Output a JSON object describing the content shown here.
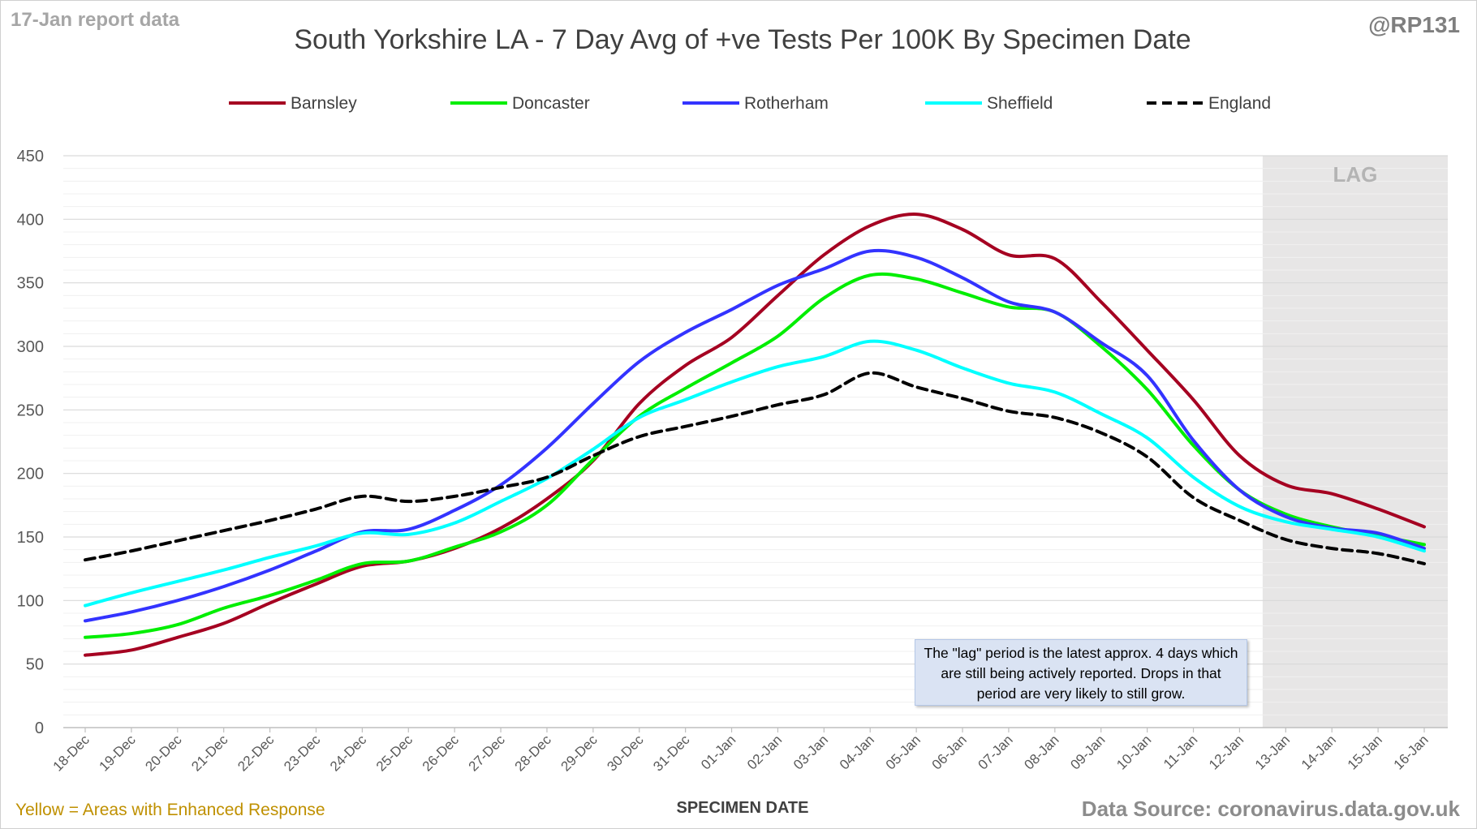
{
  "report_label": "17-Jan report data",
  "author": "@RP131",
  "footnote_left": "Yellow = Areas with Enhanced Response",
  "footnote_right": "Data Source: coronavirus.data.gov.uk",
  "annotation": "The \"lag\" period is the latest approx. 4 days which are still being actively reported. Drops in that period are very likely to still grow.",
  "colors": {
    "barnsley": "#a50021",
    "doncaster": "#00ee00",
    "rotherham": "#3333ff",
    "sheffield": "#00ffff",
    "england": "#000000",
    "lag_shade": "#e7e6e6"
  },
  "chart_data": {
    "type": "line",
    "title": "South Yorkshire LA - 7 Day Avg of +ve Tests Per 100K By Specimen Date",
    "xlabel": "SPECIMEN DATE",
    "ylabel": "",
    "ylim": [
      0,
      450
    ],
    "yticks": [
      0,
      50,
      100,
      150,
      200,
      250,
      300,
      350,
      400,
      450
    ],
    "grid": true,
    "legend_position": "top",
    "lag_label": "LAG",
    "lag_start": "13-Jan",
    "x": [
      "18-Dec",
      "19-Dec",
      "20-Dec",
      "21-Dec",
      "22-Dec",
      "23-Dec",
      "24-Dec",
      "25-Dec",
      "26-Dec",
      "27-Dec",
      "28-Dec",
      "29-Dec",
      "30-Dec",
      "31-Dec",
      "01-Jan",
      "02-Jan",
      "03-Jan",
      "04-Jan",
      "05-Jan",
      "06-Jan",
      "07-Jan",
      "08-Jan",
      "09-Jan",
      "10-Jan",
      "11-Jan",
      "12-Jan",
      "13-Jan",
      "14-Jan",
      "15-Jan",
      "16-Jan"
    ],
    "series": [
      {
        "name": "Barnsley",
        "color_key": "barnsley",
        "dashed": false,
        "values": [
          57,
          61,
          71,
          82,
          98,
          113,
          127,
          131,
          141,
          157,
          180,
          210,
          255,
          285,
          307,
          340,
          372,
          395,
          404,
          392,
          372,
          369,
          335,
          297,
          258,
          214,
          191,
          184,
          172,
          158
        ]
      },
      {
        "name": "Doncaster",
        "color_key": "doncaster",
        "dashed": false,
        "values": [
          71,
          74,
          81,
          94,
          104,
          116,
          129,
          131,
          142,
          154,
          175,
          211,
          245,
          267,
          287,
          308,
          338,
          356,
          353,
          342,
          331,
          327,
          300,
          266,
          222,
          187,
          168,
          158,
          151,
          144
        ]
      },
      {
        "name": "Rotherham",
        "color_key": "rotherham",
        "dashed": false,
        "values": [
          84,
          91,
          100,
          111,
          124,
          139,
          154,
          156,
          171,
          191,
          220,
          255,
          288,
          311,
          329,
          348,
          361,
          375,
          370,
          354,
          335,
          327,
          303,
          277,
          226,
          187,
          166,
          157,
          153,
          141
        ]
      },
      {
        "name": "Sheffield",
        "color_key": "sheffield",
        "dashed": false,
        "values": [
          96,
          106,
          115,
          124,
          134,
          143,
          153,
          152,
          161,
          178,
          196,
          219,
          244,
          258,
          272,
          284,
          292,
          304,
          297,
          283,
          271,
          264,
          247,
          228,
          197,
          174,
          162,
          156,
          150,
          139
        ]
      },
      {
        "name": "England",
        "color_key": "england",
        "dashed": true,
        "values": [
          132,
          139,
          147,
          155,
          163,
          172,
          182,
          178,
          182,
          189,
          197,
          214,
          229,
          237,
          245,
          254,
          262,
          279,
          268,
          259,
          249,
          244,
          232,
          213,
          181,
          163,
          148,
          141,
          137,
          129
        ]
      }
    ]
  }
}
